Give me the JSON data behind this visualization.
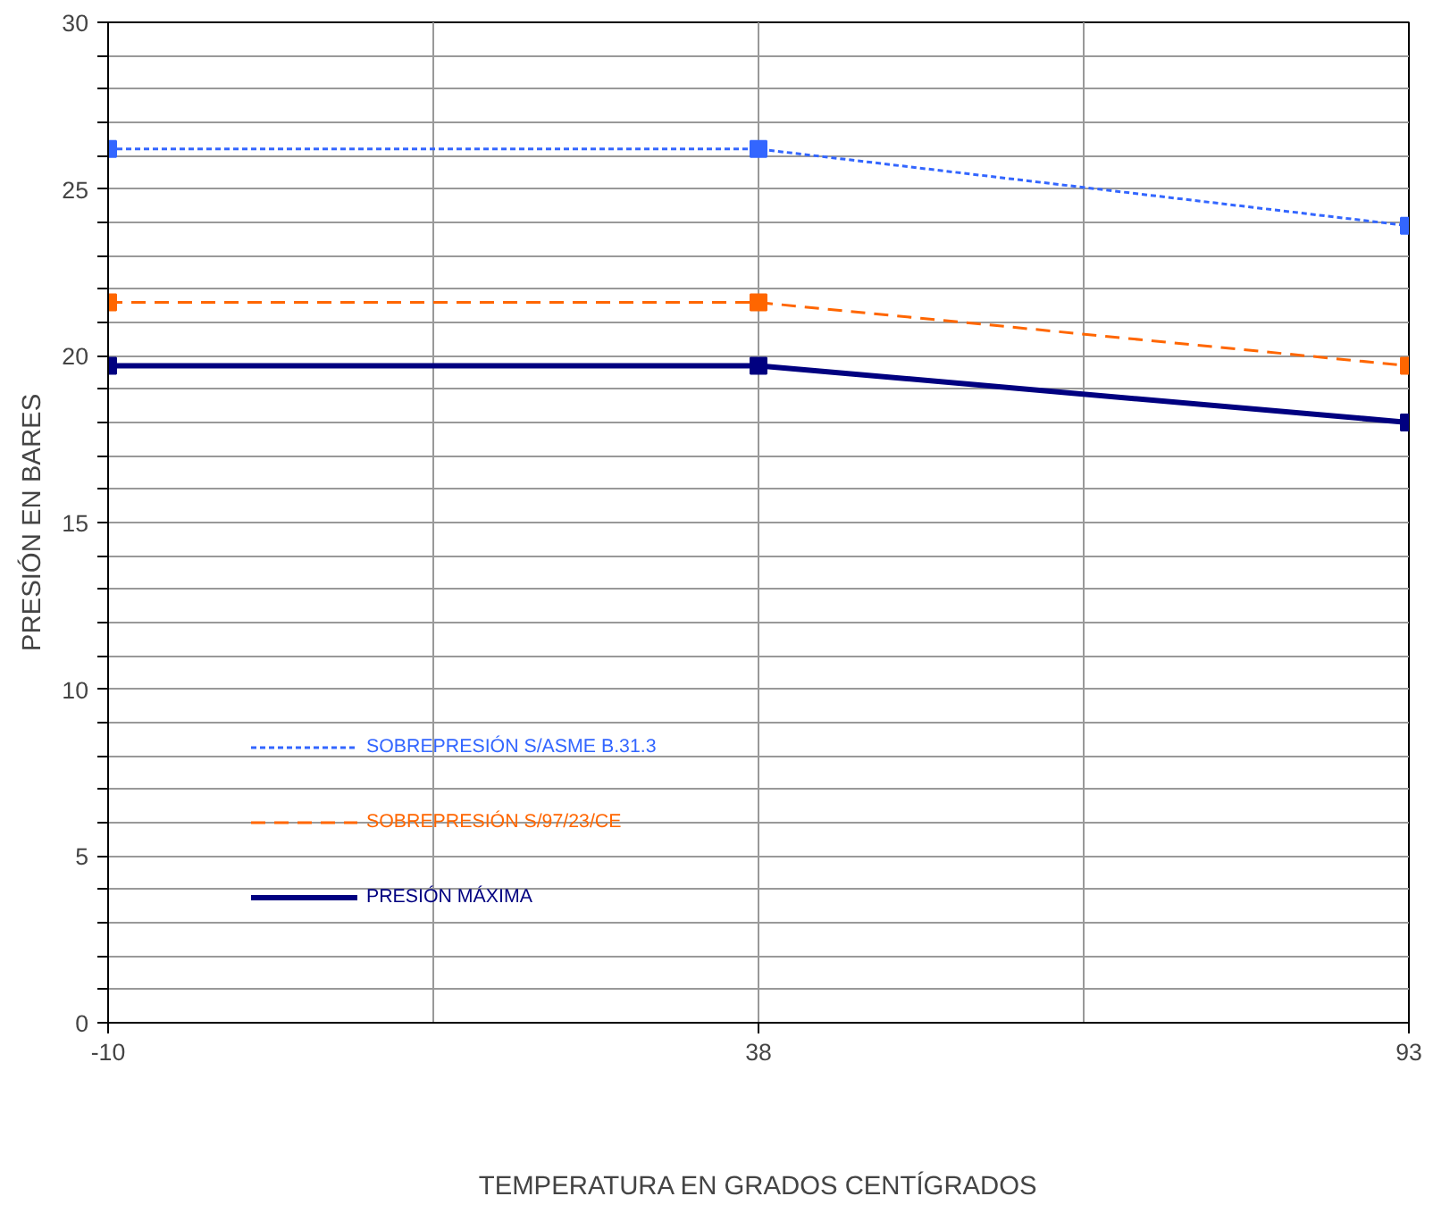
{
  "chart_data": {
    "type": "line",
    "xlabel": "TEMPERATURA EN GRADOS CENTÍGRADOS",
    "ylabel": "PRESIÓN EN BARES",
    "categories": [
      "-10",
      "38",
      "93"
    ],
    "ylim": [
      0,
      30
    ],
    "yticks": [
      0,
      {
        "value": 1,
        "label": null
      },
      {
        "value": 2,
        "label": null
      },
      {
        "value": 3,
        "label": null
      },
      {
        "value": 4,
        "label": null
      },
      5,
      {
        "value": 6,
        "label": null
      },
      {
        "value": 7,
        "label": null
      },
      {
        "value": 8,
        "label": null
      },
      {
        "value": 9,
        "label": null
      },
      10,
      {
        "value": 11,
        "label": null
      },
      {
        "value": 12,
        "label": null
      },
      {
        "value": 13,
        "label": null
      },
      {
        "value": 14,
        "label": null
      },
      15,
      {
        "value": 16,
        "label": null
      },
      {
        "value": 17,
        "label": null
      },
      {
        "value": 18,
        "label": null
      },
      {
        "value": 19,
        "label": null
      },
      20,
      {
        "value": 21,
        "label": null
      },
      {
        "value": 22,
        "label": null
      },
      {
        "value": 23,
        "label": null
      },
      {
        "value": 24,
        "label": null
      },
      25,
      {
        "value": 26,
        "label": null
      },
      {
        "value": 27,
        "label": null
      },
      {
        "value": 28,
        "label": null
      },
      {
        "value": 29,
        "label": null
      },
      30
    ],
    "grid": true,
    "legend": "bottom left",
    "marker": "square",
    "series": [
      {
        "name": "SOBREPRESIÓN S/ASME B.31.3",
        "color": "#3366ff",
        "line_style": "dotted",
        "values": [
          26.2,
          26.2,
          23.9
        ]
      },
      {
        "name": "SOBREPRESIÓN S/97/23/CE",
        "color": "#ff6600",
        "line_style": "dashed",
        "values": [
          21.6,
          21.6,
          19.7
        ]
      },
      {
        "name": "PRESIÓN MÁXIMA",
        "color": "#000080",
        "line_style": "solid",
        "values": [
          19.7,
          19.7,
          18.0
        ]
      }
    ]
  }
}
